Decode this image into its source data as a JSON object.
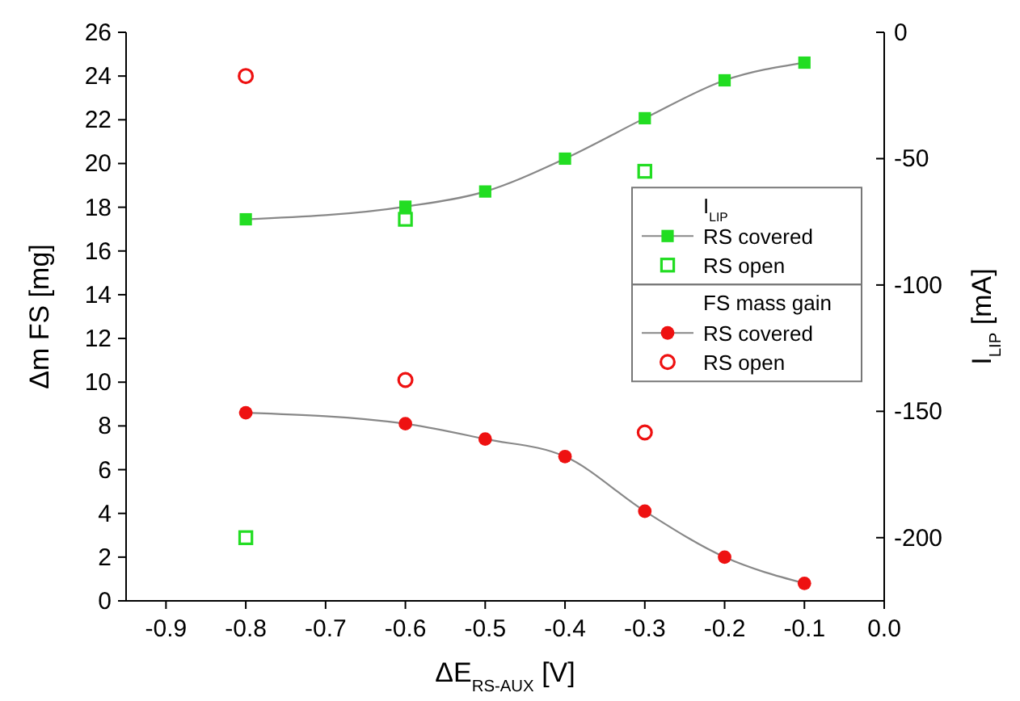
{
  "chart_data": {
    "type": "line",
    "xlabel": "ΔE$_{RS-AUX}$ [V]",
    "ylabel": "Δm FS [mg]",
    "y2label": "I$_{LIP}$ [mA]",
    "annotations": [
      "I$_{LIP}$",
      "FS mass gain"
    ],
    "xlim": [
      -0.95,
      0
    ],
    "xticks": [
      -0.9,
      -0.8,
      -0.7,
      -0.6,
      -0.5,
      -0.4,
      -0.3,
      -0.2,
      -0.1,
      {
        "value": 0,
        "label": "0.0"
      }
    ],
    "ylim": [
      0,
      26
    ],
    "yticks": [
      0,
      2,
      4,
      6,
      8,
      10,
      12,
      14,
      16,
      18,
      20,
      22,
      24,
      26
    ],
    "y2lim": [
      -225,
      0
    ],
    "y2ticks": [
      -200,
      -150,
      -100,
      -50,
      0
    ],
    "legend": "right",
    "grid": false,
    "series": [
      {
        "name": "RS covered",
        "axis": "y2",
        "marker": "square",
        "color": "#22dd22",
        "x": [
          -0.8,
          -0.6,
          -0.5,
          -0.4,
          -0.3,
          -0.2,
          -0.1
        ],
        "values": [
          -74,
          -69,
          -63,
          -50,
          -34,
          -19,
          -12
        ]
      },
      {
        "name": "RS open",
        "type": "scatter",
        "axis": "y2",
        "marker": "square",
        "color": "#22dd22",
        "x": [
          -0.8,
          -0.6,
          -0.3
        ],
        "values": [
          -200,
          -74,
          -55
        ]
      },
      {
        "name": "RS covered",
        "marker": "circle",
        "color": "#ee1111",
        "x": [
          -0.8,
          -0.6,
          -0.5,
          -0.4,
          -0.3,
          -0.2,
          -0.1
        ],
        "values": [
          8.6,
          8.1,
          7.4,
          6.6,
          4.1,
          2.0,
          0.8
        ]
      },
      {
        "name": "RS open",
        "type": "scatter",
        "marker": "circle",
        "color": "#ee1111",
        "x": [
          -0.8,
          -0.6,
          -0.3
        ],
        "values": [
          24.0,
          10.1,
          7.7
        ]
      }
    ]
  }
}
